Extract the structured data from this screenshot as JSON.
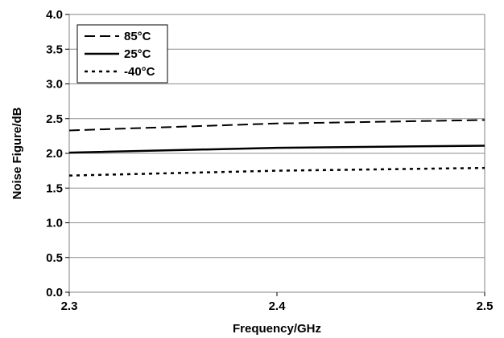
{
  "chart_data": {
    "type": "line",
    "xlabel": "Frequency/GHz",
    "ylabel": "Noise Figure/dB",
    "xlim": [
      2.3,
      2.5
    ],
    "ylim": [
      0.0,
      4.0
    ],
    "x_ticks": [
      "2.3",
      "2.4",
      "2.5"
    ],
    "y_ticks": [
      "0.0",
      "0.5",
      "1.0",
      "1.5",
      "2.0",
      "2.5",
      "3.0",
      "3.5",
      "4.0"
    ],
    "grid": "horizontal",
    "legend_position": "top-left",
    "series": [
      {
        "name": "85°C",
        "style": "dashed",
        "x": [
          2.3,
          2.4,
          2.5
        ],
        "y": [
          2.33,
          2.43,
          2.48
        ]
      },
      {
        "name": "25°C",
        "style": "solid",
        "x": [
          2.3,
          2.4,
          2.5
        ],
        "y": [
          2.01,
          2.08,
          2.11
        ]
      },
      {
        "name": "-40°C",
        "style": "dotted",
        "x": [
          2.3,
          2.4,
          2.5
        ],
        "y": [
          1.68,
          1.75,
          1.79
        ]
      }
    ]
  }
}
